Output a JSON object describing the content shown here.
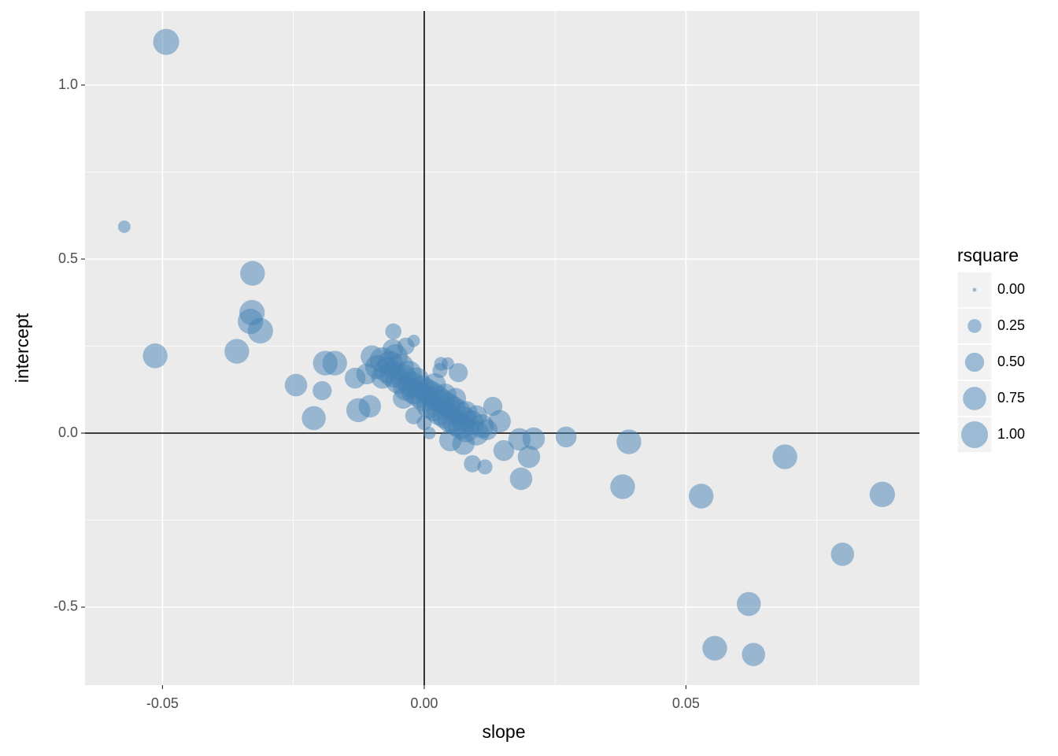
{
  "chart_data": {
    "type": "scatter",
    "x_label": "slope",
    "y_label": "intercept",
    "color": "#4682b4",
    "opacity": 0.5,
    "xlim": [
      -0.0648,
      0.0946
    ],
    "ylim": [
      -0.724,
      1.2127
    ],
    "xticks": [
      -0.05,
      {
        "value": 0,
        "label": "0.00"
      },
      0.05
    ],
    "yticks": [
      -0.5,
      {
        "value": 0,
        "label": "0.0"
      },
      0.5,
      {
        "value": 1,
        "label": "1.0"
      }
    ],
    "grid": true,
    "vline": 0,
    "hline": 0,
    "x": [
      -0.0493,
      -0.0573,
      -0.0328,
      -0.0329,
      -0.0332,
      -0.0313,
      -0.0514,
      -0.0358,
      -0.0245,
      -0.0189,
      -0.0171,
      -0.0195,
      -0.0211,
      0.0271,
      0.0391,
      0.0689,
      0.0379,
      0.0529,
      0.0875,
      0.0799,
      0.062,
      0.0555,
      0.0629,
      0.0185,
      0.0209,
      0.02,
      0.0182,
      0.0152,
      0.0116,
      0.0092,
      0.0131,
      0.0144,
      -0.0059,
      -0.002,
      0.0032,
      0.0065,
      -0.0126,
      -0.0132,
      -0.0104,
      -0.009,
      -0.008,
      -0.007,
      -0.0065,
      -0.006,
      -0.0055,
      -0.005,
      -0.0045,
      -0.004,
      -0.0035,
      -0.003,
      -0.0025,
      -0.002,
      -0.0015,
      -0.001,
      -0.0005,
      0,
      0.0005,
      0.001,
      0.0015,
      0.002,
      0.0025,
      0.003,
      0.0035,
      0.004,
      0.0045,
      0.005,
      0.0055,
      0.006,
      0.0065,
      0.007,
      0.0075,
      0.008,
      0.009,
      0.01,
      0.011,
      -0.008,
      -0.01,
      -0.011,
      -0.006,
      0.002,
      0.004,
      0.006,
      0.008,
      0.01,
      0.012,
      0.005,
      0.0075,
      -0.002,
      0,
      0.001,
      -0.004,
      0.003,
      0.0045,
      -0.0035
    ],
    "values": [
      1.124,
      0.593,
      0.459,
      0.346,
      0.321,
      0.294,
      0.222,
      0.235,
      0.138,
      0.201,
      0.201,
      0.122,
      0.043,
      -0.011,
      -0.025,
      -0.068,
      -0.154,
      -0.181,
      -0.176,
      -0.348,
      -0.491,
      -0.618,
      -0.636,
      -0.131,
      -0.016,
      -0.068,
      -0.018,
      -0.05,
      -0.097,
      -0.088,
      0.077,
      0.034,
      0.292,
      0.265,
      0.199,
      0.174,
      0.066,
      0.158,
      0.077,
      0.19,
      0.21,
      0.18,
      0.2,
      0.17,
      0.22,
      0.15,
      0.19,
      0.16,
      0.13,
      0.17,
      0.14,
      0.12,
      0.15,
      0.11,
      0.13,
      0.1,
      0.12,
      0.08,
      0.11,
      0.07,
      0.1,
      0.06,
      0.09,
      0.05,
      0.08,
      0.04,
      0.07,
      0.03,
      0.06,
      0.02,
      0.04,
      0.01,
      0.03,
      0,
      0.02,
      0.16,
      0.22,
      0.17,
      0.24,
      0.14,
      0.11,
      0.1,
      0.06,
      0.05,
      0.01,
      -0.02,
      -0.03,
      0.05,
      0.03,
      0,
      0.1,
      0.18,
      0.2,
      0.25
    ],
    "sizes": [
      0.95,
      0.2,
      0.85,
      0.9,
      0.9,
      0.9,
      0.85,
      0.85,
      0.7,
      0.85,
      0.85,
      0.5,
      0.8,
      0.6,
      0.85,
      0.85,
      0.85,
      0.85,
      0.9,
      0.75,
      0.8,
      0.85,
      0.75,
      0.7,
      0.7,
      0.7,
      0.7,
      0.6,
      0.3,
      0.4,
      0.5,
      0.7,
      0.35,
      0.2,
      0.25,
      0.5,
      0.8,
      0.6,
      0.7,
      0.8,
      0.9,
      0.95,
      0.9,
      1,
      0.85,
      0.9,
      1,
      0.95,
      0.9,
      1,
      0.95,
      0.9,
      1,
      0.95,
      0.9,
      1,
      0.9,
      0.95,
      1,
      0.9,
      0.95,
      1,
      0.9,
      0.95,
      0.9,
      1,
      0.9,
      0.95,
      0.9,
      0.95,
      0.9,
      0.9,
      0.85,
      0.85,
      0.8,
      0.7,
      0.7,
      0.6,
      0.6,
      0.7,
      0.7,
      0.6,
      0.7,
      0.6,
      0.6,
      0.7,
      0.7,
      0.4,
      0.3,
      0.2,
      0.6,
      0.3,
      0.2,
      0.4
    ],
    "size_legend": {
      "title": "rsquare",
      "breaks": [
        {
          "value": 0,
          "label": "0.00"
        },
        {
          "value": 0.25,
          "label": "0.25"
        },
        {
          "value": 0.5,
          "label": "0.50"
        },
        {
          "value": 0.75,
          "label": "0.75"
        },
        {
          "value": 1,
          "label": "1.00"
        }
      ]
    }
  }
}
